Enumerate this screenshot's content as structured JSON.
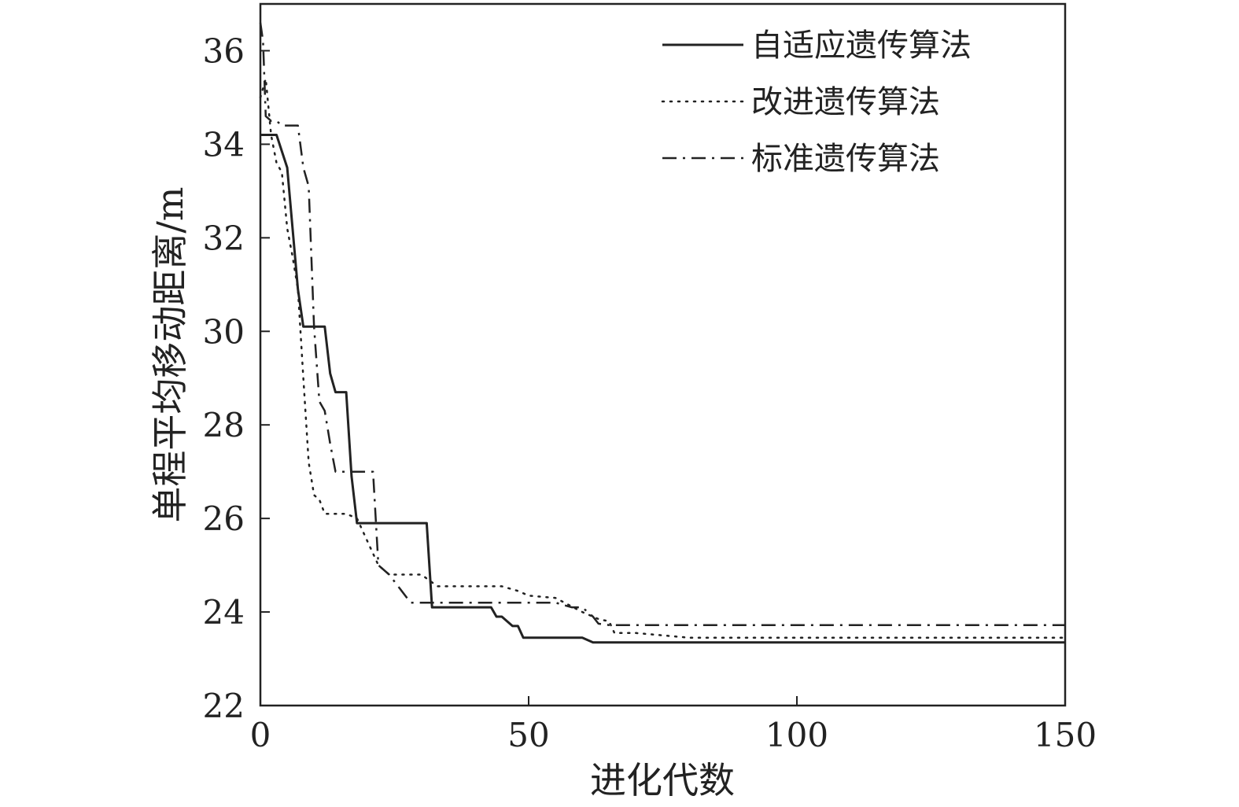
{
  "chart_data": {
    "type": "line",
    "xlabel": "进化代数",
    "ylabel": "单程平均移动距离/m",
    "xlim": [
      0,
      150
    ],
    "ylim": [
      22,
      37
    ],
    "xticks": [
      0,
      50,
      100,
      150
    ],
    "yticks": [
      22,
      24,
      26,
      28,
      30,
      32,
      34,
      36
    ],
    "x_tick_labels": [
      "0",
      "50",
      "100",
      "150"
    ],
    "y_tick_labels": [
      "22",
      "24",
      "26",
      "28",
      "30",
      "32",
      "34",
      "36"
    ],
    "grid": false,
    "legend_position": "top-right",
    "series": [
      {
        "name": "自适应遗传算法",
        "style": "solid",
        "color": "#222222",
        "x": [
          0,
          1.5,
          3,
          5,
          6,
          7,
          8,
          10,
          12,
          13,
          14,
          16,
          17,
          18,
          19,
          30,
          31,
          32,
          33,
          40,
          43,
          44,
          45,
          47,
          48,
          49,
          55,
          60,
          61,
          62,
          65,
          80,
          100,
          150
        ],
        "y": [
          34.2,
          34.2,
          34.2,
          33.5,
          32.2,
          30.9,
          30.1,
          30.1,
          30.1,
          29.1,
          28.7,
          28.7,
          26.9,
          25.9,
          25.9,
          25.9,
          25.9,
          24.1,
          24.1,
          24.1,
          24.1,
          23.9,
          23.9,
          23.7,
          23.7,
          23.45,
          23.45,
          23.45,
          23.4,
          23.35,
          23.35,
          23.35,
          23.35,
          23.35
        ]
      },
      {
        "name": "改进遗传算法",
        "style": "dotted",
        "color": "#222222",
        "x": [
          0,
          1,
          2,
          3,
          4,
          5,
          6,
          7,
          8,
          9,
          10,
          11,
          12,
          14,
          16,
          18,
          20,
          22,
          24,
          26,
          28,
          30,
          33,
          40,
          45,
          48,
          50,
          55,
          60,
          63,
          65,
          66,
          70,
          80,
          100,
          150
        ],
        "y": [
          35.0,
          35.4,
          34.2,
          33.6,
          33.4,
          32.2,
          31.6,
          30.9,
          29.0,
          27.2,
          26.5,
          26.4,
          26.1,
          26.1,
          26.1,
          26.0,
          25.5,
          25.0,
          24.8,
          24.8,
          24.8,
          24.8,
          24.55,
          24.55,
          24.55,
          24.45,
          24.35,
          24.3,
          24.0,
          23.85,
          23.8,
          23.55,
          23.55,
          23.45,
          23.45,
          23.45
        ]
      },
      {
        "name": "标准遗传算法",
        "style": "dashdot",
        "color": "#222222",
        "x": [
          0,
          0.5,
          1,
          2,
          3,
          4,
          5,
          6,
          7,
          8,
          9,
          10,
          11,
          12,
          13,
          14,
          16,
          18,
          20,
          21,
          22,
          24,
          26,
          28,
          30,
          35,
          40,
          45,
          50,
          55,
          58,
          60,
          61,
          62,
          63,
          65,
          70,
          80,
          100,
          150
        ],
        "y": [
          36.6,
          36.2,
          34.6,
          34.5,
          34.5,
          34.4,
          34.4,
          34.4,
          34.4,
          33.5,
          33.1,
          30.1,
          28.5,
          28.3,
          27.6,
          27.0,
          27.0,
          27.0,
          27.0,
          27.0,
          25.0,
          24.8,
          24.5,
          24.2,
          24.2,
          24.2,
          24.2,
          24.2,
          24.2,
          24.2,
          24.1,
          24.1,
          24.0,
          23.9,
          23.75,
          23.72,
          23.72,
          23.72,
          23.72,
          23.72
        ]
      }
    ]
  }
}
